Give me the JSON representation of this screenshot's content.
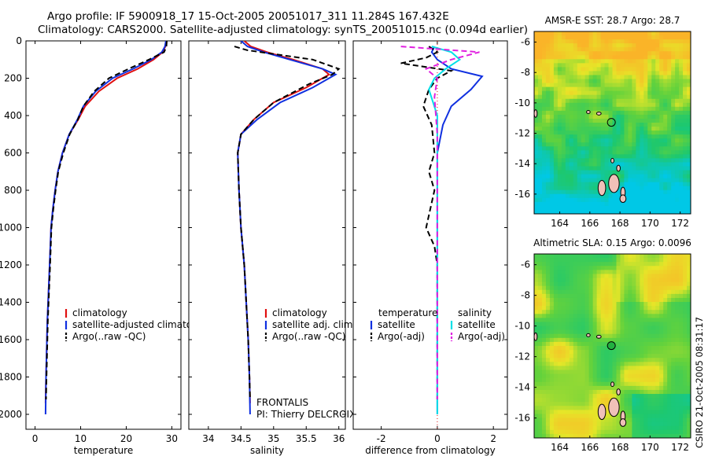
{
  "header": {
    "line1": "Argo profile: IF 5900918_17 15-Oct-2005 20051017_311 11.284S 167.432E",
    "line2": "Climatology: CARS2000. Satellite-adjusted climatology: synTS_20051015.nc (0.094d earlier)"
  },
  "side_caption": "CSIRO 21-Oct-2005 08:31:17",
  "colors": {
    "climatology": "#e01010",
    "satellite": "#1030e0",
    "argo": "#000000",
    "sat_salinity": "#00e0e8",
    "argo_salinity": "#e020e0"
  },
  "chart_data": [
    {
      "id": "temperature",
      "type": "line",
      "xlabel": "temperature",
      "ylabel": "",
      "xlim": [
        -2,
        32
      ],
      "ylim": [
        2080,
        0
      ],
      "xticks": [
        0,
        10,
        20,
        30
      ],
      "yticks": [
        0,
        200,
        400,
        600,
        800,
        1000,
        1200,
        1400,
        1600,
        1800,
        2000
      ],
      "legend": [
        "climatology",
        "satellite-adjusted climatology",
        "Argo(..raw -QC)"
      ],
      "series": [
        {
          "name": "climatology",
          "x": [
            28.8,
            28.6,
            28.0,
            26.0,
            22.5,
            18.0,
            14.0,
            11.0,
            9.5,
            8.5,
            7.5,
            6.0,
            5.0,
            4.4,
            3.9,
            3.5,
            3.2,
            2.7,
            2.4,
            2.3
          ],
          "y": [
            0,
            30,
            60,
            100,
            150,
            200,
            270,
            350,
            420,
            460,
            500,
            600,
            700,
            800,
            900,
            1000,
            1200,
            1500,
            1800,
            1940
          ]
        },
        {
          "name": "satellite-adjusted climatology",
          "x": [
            28.7,
            28.5,
            27.8,
            25.5,
            21.5,
            17.0,
            13.3,
            10.6,
            9.3,
            8.4,
            7.5,
            6.0,
            5.0,
            4.4,
            3.9,
            3.5,
            3.2,
            2.7,
            2.4,
            2.3
          ],
          "y": [
            0,
            30,
            60,
            100,
            150,
            200,
            270,
            350,
            420,
            460,
            500,
            600,
            700,
            800,
            900,
            1000,
            1200,
            1500,
            1800,
            2000
          ]
        },
        {
          "name": "Argo(..raw -QC)",
          "x": [
            28.9,
            28.8,
            28.3,
            25.0,
            20.5,
            16.2,
            13.0,
            10.6,
            9.4,
            8.5,
            7.6,
            6.2,
            5.1,
            4.5,
            4.0,
            3.6,
            3.3,
            2.8,
            2.5,
            2.4
          ],
          "y": [
            0,
            30,
            60,
            100,
            150,
            200,
            270,
            350,
            420,
            460,
            500,
            600,
            700,
            800,
            900,
            1000,
            1200,
            1500,
            1800,
            1920
          ]
        }
      ]
    },
    {
      "id": "salinity",
      "type": "line",
      "xlabel": "salinity",
      "ylabel": "",
      "xlim": [
        33.7,
        36.1
      ],
      "ylim": [
        2080,
        0
      ],
      "xticks": [
        34,
        34.5,
        35,
        35.5,
        36
      ],
      "annotation": [
        "FRONTALIS",
        "PI: Thierry DELCROIX"
      ],
      "legend": [
        "climatology",
        "satellite adj. clim.",
        "Argo(..raw -QC)"
      ],
      "series": [
        {
          "name": "climatology",
          "x": [
            34.55,
            34.65,
            34.9,
            35.3,
            35.75,
            35.85,
            35.5,
            35.0,
            34.7,
            34.5,
            34.45,
            34.47,
            34.5,
            34.55,
            34.58,
            34.61,
            34.63,
            34.64
          ],
          "y": [
            0,
            30,
            60,
            100,
            150,
            180,
            250,
            330,
            420,
            500,
            600,
            800,
            1000,
            1200,
            1400,
            1600,
            1800,
            1940
          ]
        },
        {
          "name": "satellite adj. clim.",
          "x": [
            34.5,
            34.6,
            34.85,
            35.25,
            35.75,
            35.95,
            35.6,
            35.1,
            34.75,
            34.5,
            34.45,
            34.47,
            34.5,
            34.55,
            34.58,
            34.61,
            34.63,
            34.64
          ],
          "y": [
            0,
            30,
            60,
            100,
            150,
            180,
            250,
            330,
            420,
            500,
            600,
            800,
            1000,
            1200,
            1400,
            1600,
            1800,
            2000
          ]
        },
        {
          "name": "Argo(..raw -QC)",
          "x": [
            34.4,
            34.6,
            35.6,
            36.0,
            35.9,
            35.55,
            35.0,
            34.7,
            34.5,
            34.45,
            34.47,
            34.5,
            34.55,
            34.58,
            34.61,
            34.63,
            34.64
          ],
          "y": [
            30,
            50,
            100,
            150,
            180,
            230,
            330,
            420,
            500,
            600,
            800,
            1000,
            1200,
            1400,
            1600,
            1800,
            1920
          ]
        }
      ]
    },
    {
      "id": "difference",
      "type": "line",
      "xlabel": "difference from climatology",
      "ylabel": "",
      "xlim": [
        -3,
        2.5
      ],
      "ylim": [
        2080,
        0
      ],
      "xticks": [
        -2,
        0,
        2
      ],
      "legend_titles": [
        "temperature",
        "salinity"
      ],
      "legend": [
        "satellite",
        "Argo(-adj)",
        "satellite",
        "Argo(-adj)"
      ],
      "series": [
        {
          "name": "temperature satellite",
          "x": [
            -0.1,
            -0.2,
            0.0,
            0.5,
            1.6,
            1.2,
            0.5,
            0.2,
            0.0,
            0.0,
            0.0,
            0.0,
            0.0
          ],
          "y": [
            30,
            60,
            100,
            150,
            190,
            260,
            350,
            450,
            600,
            1000,
            1400,
            1800,
            2000
          ]
        },
        {
          "name": "temperature Argo(-adj)",
          "x": [
            -0.3,
            0.0,
            -0.4,
            -1.3,
            0.5,
            0.0,
            -0.3,
            -0.5,
            -0.2,
            -0.1,
            -0.3,
            -0.1,
            -0.4,
            -0.1,
            0.0,
            0.0,
            0.0,
            0.0
          ],
          "y": [
            30,
            60,
            90,
            120,
            160,
            200,
            260,
            350,
            450,
            600,
            700,
            800,
            1000,
            1100,
            1200,
            1500,
            1800,
            1920
          ]
        },
        {
          "name": "salinity satellite",
          "x": [
            -0.2,
            0.5,
            0.8,
            0.3,
            -0.1,
            -0.3,
            0.0,
            0.0,
            0.0,
            0.0
          ],
          "y": [
            30,
            60,
            100,
            150,
            200,
            260,
            400,
            800,
            1400,
            2000
          ]
        },
        {
          "name": "salinity Argo(-adj)",
          "x": [
            -1.3,
            1.5,
            0.5,
            -0.4,
            0.0,
            -0.1,
            0.0,
            0.0,
            0.0
          ],
          "y": [
            30,
            60,
            100,
            150,
            200,
            300,
            500,
            1000,
            1920
          ]
        }
      ]
    }
  ],
  "maps": [
    {
      "title": "AMSR-E SST: 28.7 Argo: 28.7",
      "yticks": [
        -6,
        -8,
        -10,
        -12,
        -14,
        -16
      ],
      "xticks": [
        164,
        166,
        168,
        170,
        172
      ],
      "variable": "sst"
    },
    {
      "title": "Altimetric SLA: 0.15 Argo: 0.0096",
      "yticks": [
        -6,
        -8,
        -10,
        -12,
        -14,
        -16
      ],
      "xticks": [
        164,
        166,
        168,
        170,
        172
      ],
      "variable": "sla"
    }
  ]
}
